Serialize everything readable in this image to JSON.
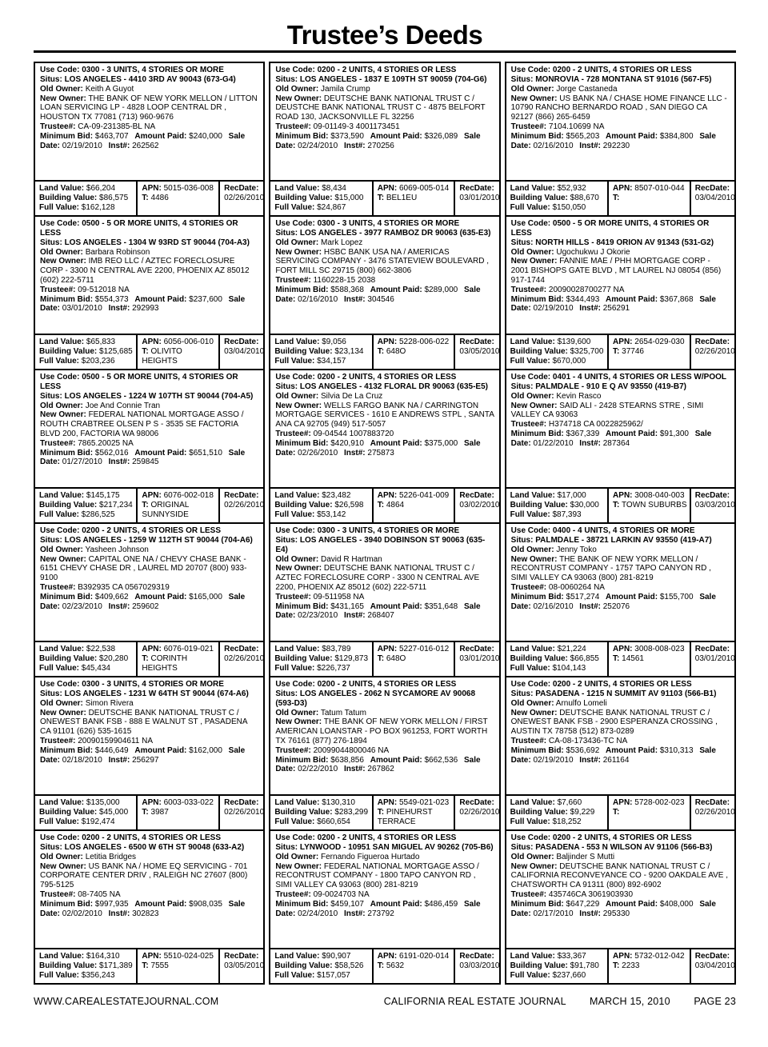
{
  "header": {
    "title": "Trustee’s Deeds"
  },
  "labels": {
    "use_code": "Use Code:",
    "situs": "Situs:",
    "old_owner": "Old Owner:",
    "new_owner": "New Owner:",
    "trustee": "Trustee#:",
    "minimum_bid": "Minimum Bid:",
    "amount_paid": "Amount Paid:",
    "sale_date": "Sale Date:",
    "inst": "Inst#:",
    "land_value": "Land Value:",
    "building_value": "Building Value:",
    "full_value": "Full Value:",
    "apn": "APN:",
    "t": "T:",
    "rec_date": "RecDate:"
  },
  "columns": [
    {
      "records": [
        {
          "use_code": "0300 - 3 UNITS, 4 STORIES OR MORE",
          "situs": "LOS ANGELES - 4410 3RD AV 90043  (673-G4)",
          "old_owner": "Keith A Guyot",
          "new_owner": "THE BANK OF NEW YORK MELLON / LITTON LOAN SERVICING LP - 4828 LOOP CENTRAL DR , HOUSTON TX 77081 (713) 960-9676",
          "trustee": "CA-09-231385-BL NA",
          "minimum_bid": "$463,707",
          "amount_paid": "$240,000",
          "sale_date": "02/19/2010",
          "inst": "262562",
          "land_value": "$66,204",
          "building_value": "$86,575",
          "full_value": "$162,128",
          "apn": "5015-036-008",
          "t": "4486",
          "rec_date": "02/26/2010"
        },
        {
          "use_code": "0500 - 5 OR MORE UNITS, 4 STORIES OR LESS",
          "situs": "LOS ANGELES - 1304 W 93RD ST 90044  (704-A3)",
          "old_owner": "Barbara Robinson",
          "new_owner": "IMB REO LLC / AZTEC FORECLOSURE CORP - 3300 N CENTRAL AVE 2200, PHOENIX AZ 85012 (602) 222-5711",
          "trustee": "09-512018 NA",
          "minimum_bid": "$554,373",
          "amount_paid": "$237,600",
          "sale_date": "03/01/2010",
          "inst": "292993",
          "land_value": "$65,833",
          "building_value": "$125,685",
          "full_value": "$203,236",
          "apn": "6056-006-010",
          "t": "OLIVITO HEIGHTS",
          "rec_date": "03/04/2010"
        },
        {
          "use_code": "0500 - 5 OR MORE UNITS, 4 STORIES OR LESS",
          "situs": "LOS ANGELES - 1224 W 107TH ST 90044  (704-A5)",
          "old_owner": "Joe And Connie Tran",
          "new_owner": "FEDERAL NATIONAL MORTGAGE ASSO / ROUTH CRABTREE OLSEN P S - 3535 SE FACTORIA BLVD 200, FACTORIA WA 98006",
          "trustee": "7865.20025 NA",
          "minimum_bid": "$562,016",
          "amount_paid": "$651,510",
          "sale_date": "01/27/2010",
          "inst": "259845",
          "land_value": "$145,175",
          "building_value": "$217,234",
          "full_value": "$286,525",
          "apn": "6076-002-018",
          "t": "ORIGINAL SUNNYSIDE",
          "rec_date": "02/26/2010"
        },
        {
          "use_code": "0200 - 2 UNITS, 4 STORIES OR LESS",
          "situs": "LOS ANGELES - 1259 W 112TH ST 90044  (704-A6)",
          "old_owner": "Yasheen Johnson",
          "new_owner": "CAPITAL ONE NA / CHEVY CHASE BANK - 6151 CHEVY CHASE DR , LAUREL MD 20707 (800) 933-9100",
          "trustee": "B392935 CA 0567029319",
          "minimum_bid": "$409,662",
          "amount_paid": "$165,000",
          "sale_date": "02/23/2010",
          "inst": "259602",
          "land_value": "$22,538",
          "building_value": "$20,280",
          "full_value": "$45,434",
          "apn": "6076-019-021",
          "t": "CORINTH HEIGHTS",
          "rec_date": "02/26/2010"
        },
        {
          "use_code": "0300 - 3 UNITS, 4 STORIES OR MORE",
          "situs": "LOS ANGELES - 1231 W 64TH ST 90044  (674-A6)",
          "old_owner": "Simon Rivera",
          "new_owner": "DEUTSCHE BANK NATIONAL TRUST C / ONEWEST BANK FSB - 888 E WALNUT ST , PASADENA CA 91101 (626) 535-1615",
          "trustee": "20090159904611 NA",
          "minimum_bid": "$446,649",
          "amount_paid": "$162,000",
          "sale_date": "02/18/2010",
          "inst": "256297",
          "land_value": "$135,000",
          "building_value": "$45,000",
          "full_value": "$192,474",
          "apn": "6003-033-022",
          "t": "3987",
          "rec_date": "02/26/2010"
        },
        {
          "use_code": "0200 - 2 UNITS, 4 STORIES OR LESS",
          "situs": "LOS ANGELES - 6500 W 6TH ST 90048  (633-A2)",
          "old_owner": "Letitia Bridges",
          "new_owner": "US BANK NA / HOME EQ SERVICING - 701 CORPORATE CENTER DRIV , RALEIGH NC 27607 (800) 795-5125",
          "trustee": "08-7405 NA",
          "minimum_bid": "$997,935",
          "amount_paid": "$908,035",
          "sale_date": "02/02/2010",
          "inst": "302823",
          "land_value": "$164,310",
          "building_value": "$171,389",
          "full_value": "$356,243",
          "apn": "5510-024-025",
          "t": "7555",
          "rec_date": "03/05/2010"
        }
      ]
    },
    {
      "records": [
        {
          "use_code": "0200 - 2 UNITS, 4 STORIES OR LESS",
          "situs": "LOS ANGELES - 1837 E 109TH ST 90059  (704-G6)",
          "old_owner": "Jamila Crump",
          "new_owner": "DEUTSCHE BANK NATIONAL TRUST C / DEUSTCHE BANK NATIONAL TRUST C - 4875 BELFORT ROAD 130, JACKSONVILLE FL 32256",
          "trustee": "09-01149-3 4001173451",
          "minimum_bid": "$373,590",
          "amount_paid": "$326,089",
          "sale_date": "02/24/2010",
          "inst": "270256",
          "land_value": "$8,434",
          "building_value": "$15,000",
          "full_value": "$24,867",
          "apn": "6069-005-014",
          "t": "BEL1EU",
          "rec_date": "03/01/2010"
        },
        {
          "use_code": "0300 - 3 UNITS, 4 STORIES OR MORE",
          "situs": "LOS ANGELES - 3977 RAMBOZ DR 90063  (635-E3)",
          "old_owner": "Mark Lopez",
          "new_owner": "HSBC BANK USA NA / AMERICAS SERVICING COMPANY - 3476 STATEVIEW BOULEVARD , FORT MILL SC 29715 (800) 662-3806",
          "trustee": "1160228-15 2038",
          "minimum_bid": "$588,368",
          "amount_paid": "$289,000",
          "sale_date": "02/16/2010",
          "inst": "304546",
          "land_value": "$9,056",
          "building_value": "$23,134",
          "full_value": "$34,157",
          "apn": "5228-006-022",
          "t": "648O",
          "rec_date": "03/05/2010"
        },
        {
          "use_code": "0200 - 2 UNITS, 4 STORIES OR LESS",
          "situs": "LOS ANGELES - 4132 FLORAL DR 90063  (635-E5)",
          "old_owner": "Silvia De La Cruz",
          "new_owner": "WELLS FARGO BANK NA / CARRINGTON MORTGAGE SERVICES - 1610 E ANDREWS STPL , SANTA ANA CA 92705 (949) 517-5057",
          "trustee": "09-04544 1007883720",
          "minimum_bid": "$420,910",
          "amount_paid": "$375,000",
          "sale_date": "02/26/2010",
          "inst": "275873",
          "land_value": "$23,482",
          "building_value": "$26,598",
          "full_value": "$53,142",
          "apn": "5226-041-009",
          "t": "4864",
          "rec_date": "03/02/2010"
        },
        {
          "use_code": "0300 - 3 UNITS, 4 STORIES OR MORE",
          "situs": "LOS ANGELES - 3940 DOBINSON ST 90063  (635-E4)",
          "old_owner": "David R Hartman",
          "new_owner": "DEUTSCHE BANK NATIONAL TRUST C / AZTEC FORECLOSURE CORP - 3300 N CENTRAL AVE 2200, PHOENIX AZ 85012 (602) 222-5711",
          "trustee": "09-511958 NA",
          "minimum_bid": "$431,165",
          "amount_paid": "$351,648",
          "sale_date": "02/23/2010",
          "inst": "268407",
          "land_value": "$83,789",
          "building_value": "$129,873",
          "full_value": "$226,737",
          "apn": "5227-016-012",
          "t": "648O",
          "rec_date": "03/01/2010"
        },
        {
          "use_code": "0200 - 2 UNITS, 4 STORIES OR LESS",
          "situs": "LOS ANGELES - 2062 N SYCAMORE AV 90068  (593-D3)",
          "old_owner": "Tatum Tatum",
          "new_owner": "THE BANK OF NEW YORK MELLON / FIRST AMERICAN LOANSTAR - PO BOX 961253, FORT WORTH TX 76161 (877) 276-1894",
          "trustee": "20099044800046 NA",
          "minimum_bid": "$638,856",
          "amount_paid": "$662,536",
          "sale_date": "02/22/2010",
          "inst": "267862",
          "land_value": "$130,310",
          "building_value": "$283,299",
          "full_value": "$660,654",
          "apn": "5549-021-023",
          "t": "PINEHURST TERRACE",
          "rec_date": "02/26/2010"
        },
        {
          "use_code": "0200 - 2 UNITS, 4 STORIES OR LESS",
          "situs": "LYNWOOD - 10951 SAN MIGUEL AV 90262  (705-B6)",
          "old_owner": "Fernando Figueroa Hurtado",
          "new_owner": "FEDERAL NATIONAL MORTGAGE ASSO / RECONTRUST COMPANY - 1800 TAPO CANYON RD , SIMI VALLEY CA 93063 (800) 281-8219",
          "trustee": "09-0024703 NA",
          "minimum_bid": "$459,107",
          "amount_paid": "$486,459",
          "sale_date": "02/24/2010",
          "inst": "273792",
          "land_value": "$90,907",
          "building_value": "$58,526",
          "full_value": "$157,057",
          "apn": "6191-020-014",
          "t": "5632",
          "rec_date": "03/03/2010"
        }
      ]
    },
    {
      "records": [
        {
          "use_code": "0200 - 2 UNITS, 4 STORIES OR LESS",
          "situs": "MONROVIA - 728 MONTANA ST 91016  (567-F5)",
          "old_owner": "Jorge Castaneda",
          "new_owner": "US BANK NA / CHASE HOME FINANCE LLC - 10790 RANCHO BERNARDO ROAD , SAN DIEGO CA 92127 (866) 265-6459",
          "trustee": "7104.10699 NA",
          "minimum_bid": "$565,203",
          "amount_paid": "$384,800",
          "sale_date": "02/16/2010",
          "inst": "292230",
          "land_value": "$52,932",
          "building_value": "$88,670",
          "full_value": "$150,050",
          "apn": "8507-010-044",
          "t": "",
          "rec_date": "03/04/2010"
        },
        {
          "use_code": "0500 - 5 OR MORE UNITS, 4 STORIES OR LESS",
          "situs": "NORTH HILLS - 8419 ORION AV 91343  (531-G2)",
          "old_owner": "Ugochukwu J Okorie",
          "new_owner": "FANNIE MAE / PHH MORTGAGE CORP - 2001 BISHOPS GATE BLVD , MT LAUREL NJ 08054 (856) 917-1744",
          "trustee": "20090028700277 NA",
          "minimum_bid": "$344,493",
          "amount_paid": "$367,868",
          "sale_date": "02/19/2010",
          "inst": "256291",
          "land_value": "$139,600",
          "building_value": "$325,700",
          "full_value": "$670,000",
          "apn": "2654-029-030",
          "t": "37746",
          "rec_date": "02/26/2010"
        },
        {
          "use_code": "0401 - 4 UNITS, 4 STORIES OR LESS W/POOL",
          "situs": "PALMDALE - 910 E Q AV 93550  (419-B7)",
          "old_owner": "Kevin Rasco",
          "new_owner": "SAID ALI - 2428 STEARNS STRE , SIMI VALLEY CA 93063",
          "trustee": "H374718 CA 0022825962/",
          "minimum_bid": "$367,339",
          "amount_paid": "$91,300",
          "sale_date": "01/22/2010",
          "inst": "287364",
          "land_value": "$17,000",
          "building_value": "$30,000",
          "full_value": "$87,393",
          "apn": "3008-040-003",
          "t": "TOWN SUBURBS",
          "rec_date": "03/03/2010"
        },
        {
          "use_code": "0400 - 4 UNITS, 4 STORIES OR MORE",
          "situs": "PALMDALE - 38721 LARKIN AV 93550  (419-A7)",
          "old_owner": "Jenny Toko",
          "new_owner": "THE BANK OF NEW YORK MELLON / RECONTRUST COMPANY - 1757 TAPO CANYON RD , SIMI VALLEY CA 93063 (800) 281-8219",
          "trustee": "08-0060264 NA",
          "minimum_bid": "$517,274",
          "amount_paid": "$155,700",
          "sale_date": "02/16/2010",
          "inst": "252076",
          "land_value": "$21,224",
          "building_value": "$66,855",
          "full_value": "$104,143",
          "apn": "3008-008-023",
          "t": "14561",
          "rec_date": "03/01/2010"
        },
        {
          "use_code": "0200 - 2 UNITS, 4 STORIES OR LESS",
          "situs": "PASADENA - 1215 N SUMMIT AV 91103  (566-B1)",
          "old_owner": "Arnulfo Lomeli",
          "new_owner": "DEUTSCHE BANK NATIONAL TRUST C / ONEWEST BANK FSB - 2900 ESPERANZA CROSSING , AUSTIN TX 78758 (512) 873-0289",
          "trustee": "CA-08-173436-TC NA",
          "minimum_bid": "$536,692",
          "amount_paid": "$310,313",
          "sale_date": "02/19/2010",
          "inst": "261164",
          "land_value": "$7,660",
          "building_value": "$9,229",
          "full_value": "$18,252",
          "apn": "5728-002-023",
          "t": "",
          "rec_date": "02/26/2010"
        },
        {
          "use_code": "0200 - 2 UNITS, 4 STORIES OR LESS",
          "situs": "PASADENA - 553 N WILSON AV 91106  (566-B3)",
          "old_owner": "Baljinder S Mutti",
          "new_owner": "DEUTSCHE BANK NATIONAL TRUST C / CALIFORNIA RECONVEYANCE CO - 9200 OAKDALE AVE , CHATSWORTH CA 91311 (800) 892-6902",
          "trustee": "435746CA 3061903930",
          "minimum_bid": "$647,229",
          "amount_paid": "$408,000",
          "sale_date": "02/17/2010",
          "inst": "295330",
          "land_value": "$33,367",
          "building_value": "$91,780",
          "full_value": "$237,660",
          "apn": "5732-012-042",
          "t": "2233",
          "rec_date": "03/04/2010"
        }
      ]
    }
  ],
  "footer": {
    "website": "WWW.CAREALESTATEJOURNAL.COM",
    "journal": "CALIFORNIA REAL ESTATE JOURNAL",
    "date": "MARCH 15, 2010",
    "page": "PAGE 23"
  }
}
